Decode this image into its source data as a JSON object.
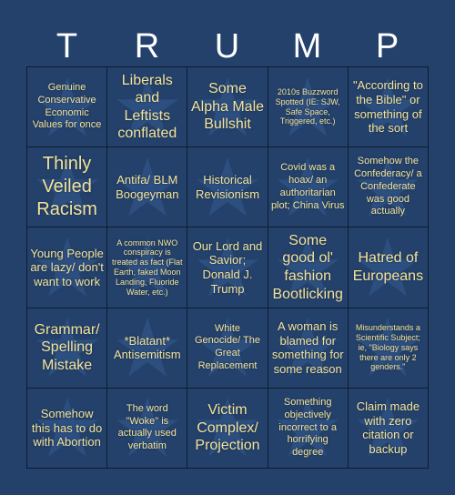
{
  "header": {
    "letters": [
      "T",
      "R",
      "U",
      "M",
      "P"
    ]
  },
  "colors": {
    "background": "#23416b",
    "cell_text": "#f4e39a",
    "header_text": "#ffffff",
    "grid_line": "#0e1b2e",
    "star": "#2c4f80"
  },
  "grid": {
    "cells": [
      {
        "text": "Genuine Conservative Economic Values for once",
        "size": "s-s"
      },
      {
        "text": "Liberals and Leftists conflated",
        "size": "s-l"
      },
      {
        "text": "Some Alpha Male Bullshit",
        "size": "s-l"
      },
      {
        "text": "2010s Buzzword Spotted (IE: SJW, Safe Space, Triggered, etc.)",
        "size": "s-xs"
      },
      {
        "text": "\"According to the Bible\" or something of the sort",
        "size": "s-m"
      },
      {
        "text": "Thinly Veiled Racism",
        "size": "s-xl"
      },
      {
        "text": "Antifa/ BLM Boogeyman",
        "size": "s-m"
      },
      {
        "text": "Historical Revisionism",
        "size": "s-m"
      },
      {
        "text": "Covid was a hoax/ an authoritarian plot; China Virus",
        "size": "s-s"
      },
      {
        "text": "Somehow the Confederacy/ a Confederate was good actually",
        "size": "s-s"
      },
      {
        "text": "Young People are lazy/ don't want to work",
        "size": "s-m"
      },
      {
        "text": "A common NWO conspiracy is treated as fact (Flat Earth, faked Moon Landing, Fluoride Water, etc.)",
        "size": "s-xs"
      },
      {
        "text": "Our Lord and Savior; Donald J. Trump",
        "size": "s-m"
      },
      {
        "text": "Some good ol' fashion Bootlicking",
        "size": "s-l"
      },
      {
        "text": "Hatred of Europeans",
        "size": "s-l"
      },
      {
        "text": "Grammar/ Spelling Mistake",
        "size": "s-l"
      },
      {
        "text": "*Blatant* Antisemitism",
        "size": "s-m"
      },
      {
        "text": "White Genocide/ The Great Replacement",
        "size": "s-s"
      },
      {
        "text": "A woman is blamed for something for some reason",
        "size": "s-m"
      },
      {
        "text": "Misunderstands a Scientific Subject; ie, \"Biology says there are only 2 genders.\"",
        "size": "s-xs"
      },
      {
        "text": "Somehow this has to do with Abortion",
        "size": "s-m"
      },
      {
        "text": "The word \"Woke\" is actually used verbatim",
        "size": "s-s"
      },
      {
        "text": "Victim Complex/ Projection",
        "size": "s-l"
      },
      {
        "text": "Something objectively incorrect to a horrifying degree",
        "size": "s-s"
      },
      {
        "text": "Claim made with zero citation or backup",
        "size": "s-m"
      }
    ]
  }
}
